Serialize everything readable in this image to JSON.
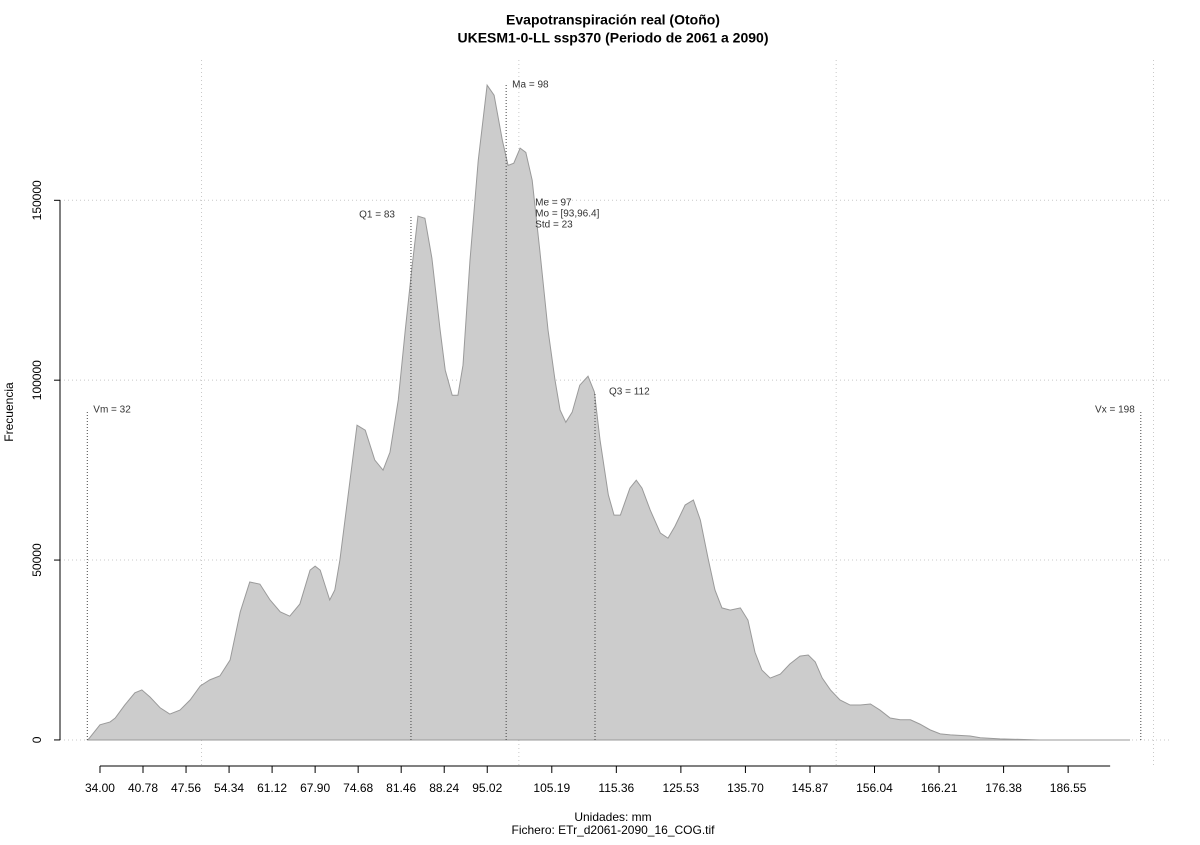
{
  "chart_data": {
    "type": "area",
    "title": "Evapotranspiración real (Otoño)",
    "subtitle": "UKESM1-0-LL ssp370 (Periodo de 2061 a 2090)",
    "xlabel": "Unidades: mm",
    "caption": "Fichero: ETr_d2061-2090_16_COG.tif",
    "ylabel": "Frecuencia",
    "color": "#cccccc",
    "line_color": "#9a9a9a",
    "grid": true,
    "xlim": [
      27.7,
      202.6
    ],
    "ylim": [
      -7800,
      189000
    ],
    "yticks": [
      0,
      50000,
      100000,
      150000
    ],
    "xgrid": [
      50,
      100,
      150,
      200
    ],
    "xticks": [
      {
        "value": 34,
        "label": "34.00"
      },
      {
        "value": 40.78,
        "label": "40.78"
      },
      {
        "value": 47.56,
        "label": "47.56"
      },
      {
        "value": 54.34,
        "label": "54.34"
      },
      {
        "value": 61.12,
        "label": "61.12"
      },
      {
        "value": 67.9,
        "label": "67.90"
      },
      {
        "value": 74.68,
        "label": "74.68"
      },
      {
        "value": 81.46,
        "label": "81.46"
      },
      {
        "value": 88.24,
        "label": "88.24"
      },
      {
        "value": 95.02,
        "label": "95.02"
      },
      {
        "value": 105.19,
        "label": "105.19"
      },
      {
        "value": 115.36,
        "label": "115.36"
      },
      {
        "value": 125.53,
        "label": "125.53"
      },
      {
        "value": 135.7,
        "label": "135.70"
      },
      {
        "value": 145.87,
        "label": "145.87"
      },
      {
        "value": 156.04,
        "label": "156.04"
      },
      {
        "value": 166.21,
        "label": "166.21"
      },
      {
        "value": 176.38,
        "label": "176.38"
      },
      {
        "value": 186.55,
        "label": "186.55"
      }
    ],
    "x": [
      32.1,
      34.0,
      35.6,
      36.4,
      37.9,
      39.5,
      40.6,
      41.9,
      43.5,
      45.0,
      46.6,
      48.2,
      49.8,
      51.3,
      52.9,
      54.5,
      56.1,
      57.6,
      59.2,
      60.8,
      62.4,
      63.9,
      65.5,
      67.1,
      67.9,
      68.7,
      70.2,
      71.0,
      71.8,
      73.4,
      74.5,
      75.8,
      77.3,
      78.6,
      79.7,
      81.0,
      82.1,
      83.2,
      84.1,
      85.2,
      86.3,
      87.6,
      88.4,
      89.5,
      90.4,
      91.2,
      92.3,
      93.6,
      95.0,
      96.1,
      97.4,
      98.3,
      99.2,
      100.2,
      101.1,
      102.1,
      103.3,
      104.6,
      105.7,
      106.5,
      107.4,
      108.4,
      109.6,
      110.9,
      111.9,
      112.8,
      114.1,
      115.0,
      116.0,
      117.5,
      118.5,
      119.4,
      120.7,
      122.3,
      123.5,
      124.6,
      126.2,
      127.5,
      128.6,
      129.8,
      130.9,
      132.0,
      133.3,
      134.9,
      136.1,
      137.2,
      138.3,
      139.6,
      141.2,
      142.7,
      144.3,
      145.6,
      146.7,
      147.8,
      149.1,
      150.6,
      152.2,
      153.8,
      155.4,
      156.9,
      158.5,
      160.1,
      161.7,
      163.2,
      164.8,
      166.4,
      168.0,
      171.1,
      172.7,
      175.8,
      182.1,
      196.3
    ],
    "values": [
      0,
      4200,
      5000,
      6100,
      9700,
      13100,
      13900,
      11900,
      8900,
      7200,
      8300,
      11100,
      15000,
      16700,
      17800,
      22200,
      35600,
      43900,
      43300,
      38900,
      35600,
      34400,
      37800,
      47200,
      48300,
      47200,
      38900,
      41700,
      50000,
      72200,
      87500,
      86100,
      77800,
      75000,
      80000,
      94500,
      113900,
      132000,
      145600,
      145000,
      133900,
      113900,
      102800,
      95800,
      95800,
      104200,
      133300,
      161100,
      182000,
      179200,
      166700,
      159700,
      160300,
      164500,
      163300,
      155600,
      136100,
      113900,
      100000,
      91700,
      88300,
      91100,
      98600,
      101100,
      96700,
      83300,
      68100,
      62500,
      62500,
      70000,
      72200,
      70000,
      63900,
      57500,
      56100,
      59400,
      65300,
      66700,
      61100,
      50600,
      41700,
      36700,
      36100,
      36700,
      33300,
      24400,
      19400,
      17200,
      18300,
      21100,
      23300,
      23600,
      21700,
      17200,
      13900,
      11100,
      9700,
      9700,
      10000,
      8300,
      6100,
      5600,
      5600,
      4400,
      2800,
      1700,
      1400,
      1100,
      600,
      300,
      0,
      0
    ],
    "annotations": [
      {
        "text": "Vm = 32",
        "x": 32
      },
      {
        "text": "Q1 = 83",
        "x": 83
      },
      {
        "text": "Ma = 98",
        "x": 98
      },
      {
        "text": "Q3 = 112",
        "x": 112
      },
      {
        "text": "Vx = 198",
        "x": 198
      }
    ],
    "stats_text": [
      "Me = 97",
      "Mo = [93,96.4]",
      "Std = 23"
    ]
  }
}
